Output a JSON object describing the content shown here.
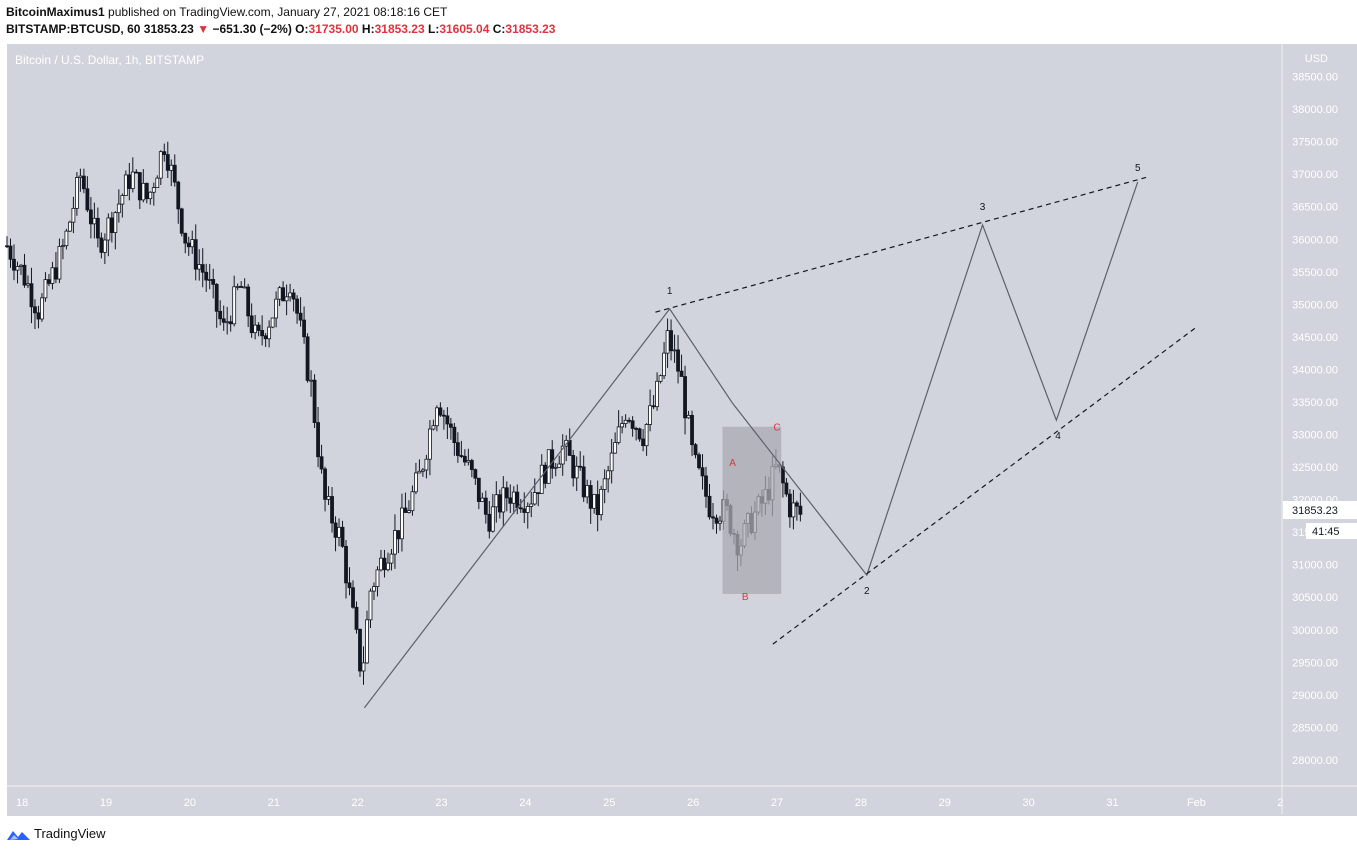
{
  "header": {
    "author": "BitcoinMaximus1",
    "published_text": "published on TradingView.com, January 27, 2021 08:18:16 CET",
    "symbol": "BITSTAMP:BTCUSD, 60",
    "last": "31853.23",
    "change": "−651.30 (−2%)",
    "open_label": "O:",
    "open": "31735.00",
    "high_label": "H:",
    "high": "31853.23",
    "low_label": "L:",
    "low": "31605.04",
    "close_label": "C:",
    "close": "31853.23"
  },
  "footer": {
    "logo_text": "TradingView"
  },
  "colors": {
    "background": "#d1d4dc",
    "candle": "#131722",
    "annotation_red": "#e0333d",
    "box": "#a9abb1"
  },
  "chart_data": {
    "type": "candlestick",
    "title": "Bitcoin / U.S. Dollar, 1h, BITSTAMP",
    "y_unit": "USD",
    "ylim": [
      27600,
      39000
    ],
    "y_ticks": [
      "38500.00",
      "38000.00",
      "37500.00",
      "37000.00",
      "36500.00",
      "36000.00",
      "35500.00",
      "35000.00",
      "34500.00",
      "34000.00",
      "33500.00",
      "33000.00",
      "32500.00",
      "32000.00",
      "31500.00",
      "31000.00",
      "30500.00",
      "30000.00",
      "29500.00",
      "29000.00",
      "28500.00",
      "28000.00"
    ],
    "x_ticks": [
      {
        "label": "18",
        "day": 18
      },
      {
        "label": "19",
        "day": 19
      },
      {
        "label": "20",
        "day": 20
      },
      {
        "label": "21",
        "day": 21
      },
      {
        "label": "22",
        "day": 22
      },
      {
        "label": "23",
        "day": 23
      },
      {
        "label": "24",
        "day": 24
      },
      {
        "label": "25",
        "day": 25
      },
      {
        "label": "26",
        "day": 26
      },
      {
        "label": "27",
        "day": 27
      },
      {
        "label": "28",
        "day": 28
      },
      {
        "label": "29",
        "day": 29
      },
      {
        "label": "30",
        "day": 30
      },
      {
        "label": "31",
        "day": 31
      },
      {
        "label": "Feb",
        "day": 32
      },
      {
        "label": "2",
        "day": 33
      }
    ],
    "xlim": [
      17.82,
      33.02
    ],
    "last_price_label": "31853.23",
    "countdown_label": "41:45",
    "grid": false,
    "price_path": [
      [
        17.82,
        35900
      ],
      [
        18.0,
        35500
      ],
      [
        18.2,
        34900
      ],
      [
        18.5,
        35900
      ],
      [
        18.7,
        37000
      ],
      [
        18.9,
        35900
      ],
      [
        19.1,
        36400
      ],
      [
        19.3,
        37000
      ],
      [
        19.5,
        36600
      ],
      [
        19.7,
        37500
      ],
      [
        19.95,
        36000
      ],
      [
        20.2,
        35400
      ],
      [
        20.4,
        34600
      ],
      [
        20.6,
        35300
      ],
      [
        20.8,
        34400
      ],
      [
        21.0,
        34900
      ],
      [
        21.2,
        35400
      ],
      [
        21.45,
        33700
      ],
      [
        21.6,
        32000
      ],
      [
        21.8,
        31400
      ],
      [
        22.05,
        29300
      ],
      [
        22.15,
        30600
      ],
      [
        22.3,
        31100
      ],
      [
        22.55,
        31700
      ],
      [
        22.75,
        32400
      ],
      [
        22.95,
        33600
      ],
      [
        23.15,
        32900
      ],
      [
        23.35,
        32400
      ],
      [
        23.55,
        31700
      ],
      [
        23.8,
        32100
      ],
      [
        24.05,
        32000
      ],
      [
        24.25,
        32500
      ],
      [
        24.45,
        32800
      ],
      [
        24.65,
        32300
      ],
      [
        24.85,
        31800
      ],
      [
        25.05,
        32700
      ],
      [
        25.2,
        33400
      ],
      [
        25.4,
        33000
      ],
      [
        25.55,
        33500
      ],
      [
        25.7,
        34500
      ],
      [
        25.85,
        33900
      ],
      [
        26.0,
        32600
      ],
      [
        26.2,
        31900
      ],
      [
        26.4,
        31800
      ],
      [
        26.55,
        31300
      ],
      [
        26.7,
        31700
      ],
      [
        26.85,
        32000
      ],
      [
        27.0,
        32500
      ],
      [
        27.15,
        31900
      ],
      [
        27.3,
        31750
      ]
    ],
    "wave_lines": [
      {
        "name": "impulse-path",
        "style": "solid",
        "points": [
          [
            22.08,
            28800
          ],
          [
            25.72,
            34930
          ],
          [
            26.47,
            33480
          ]
        ]
      },
      {
        "name": "impulse-path-2",
        "style": "solid",
        "points": [
          [
            26.47,
            33480
          ],
          [
            28.07,
            30840
          ],
          [
            29.45,
            36220
          ],
          [
            30.33,
            33220
          ],
          [
            31.3,
            36880
          ]
        ]
      },
      {
        "name": "upper-channel",
        "style": "dashed",
        "points": [
          [
            25.55,
            34880
          ],
          [
            31.4,
            36950
          ]
        ]
      },
      {
        "name": "lower-channel",
        "style": "dashed",
        "points": [
          [
            26.95,
            29780
          ],
          [
            32.0,
            34650
          ]
        ]
      }
    ],
    "annotations": [
      {
        "label": "1",
        "x": 25.72,
        "y": 35160,
        "color": "#131722"
      },
      {
        "label": "2",
        "x": 28.07,
        "y": 30550,
        "color": "#131722"
      },
      {
        "label": "3",
        "x": 29.45,
        "y": 36450,
        "color": "#131722"
      },
      {
        "label": "4",
        "x": 30.35,
        "y": 32930,
        "color": "#131722"
      },
      {
        "label": "5",
        "x": 31.3,
        "y": 37050,
        "color": "#131722"
      },
      {
        "label": "A",
        "x": 26.47,
        "y": 32520,
        "color": "#e0333d"
      },
      {
        "label": "B",
        "x": 26.62,
        "y": 30460,
        "color": "#e0333d"
      },
      {
        "label": "C",
        "x": 27.0,
        "y": 33060,
        "color": "#e0333d"
      }
    ],
    "box": {
      "x0": 26.35,
      "x1": 27.05,
      "y0": 30550,
      "y1": 33120
    }
  }
}
